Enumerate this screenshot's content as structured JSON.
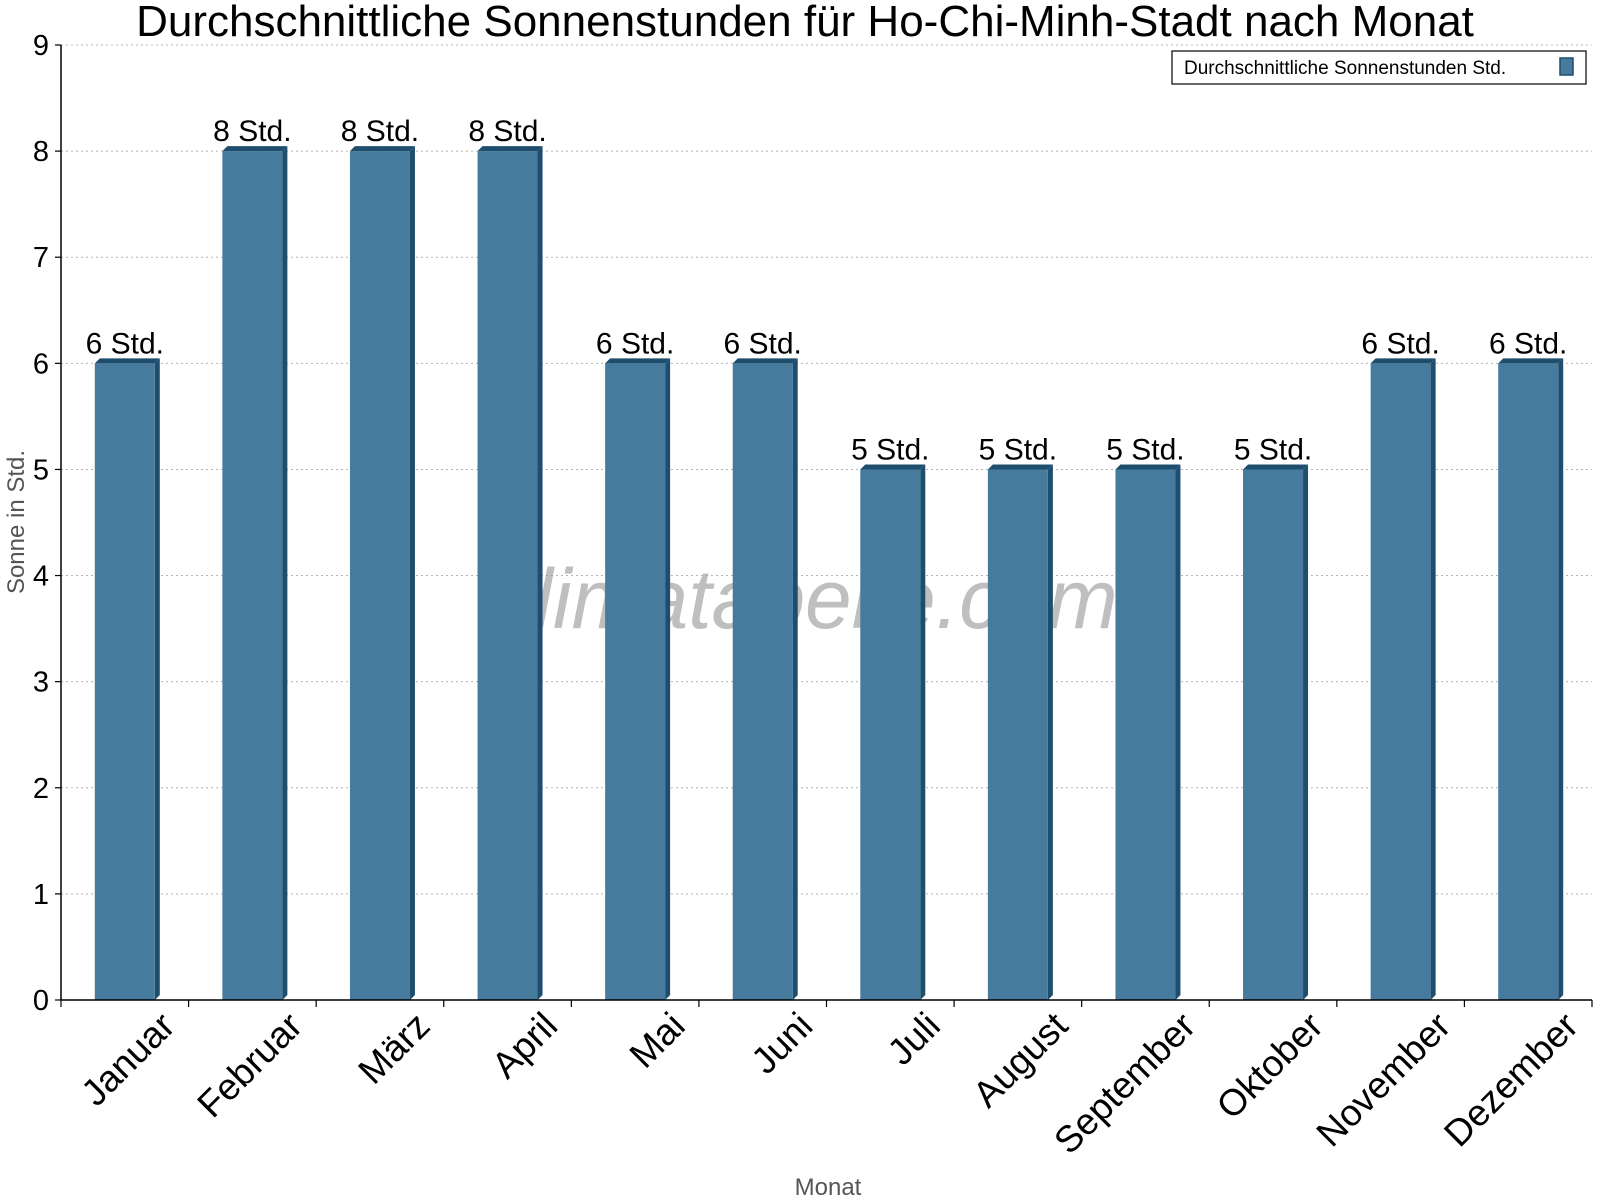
{
  "chart_data": {
    "type": "bar",
    "title": "Durchschnittliche Sonnenstunden für Ho-Chi-Minh-Stadt nach Monat",
    "xlabel": "Monat",
    "ylabel": "Sonne in Std.",
    "ylim": [
      0,
      9
    ],
    "yticks": [
      "0",
      "1",
      "2",
      "3",
      "4",
      "5",
      "6",
      "7",
      "8",
      "9"
    ],
    "grid": true,
    "legend_position": "top-right",
    "categories": [
      "Januar",
      "Februar",
      "März",
      "April",
      "Mai",
      "Juni",
      "Juli",
      "August",
      "September",
      "Oktober",
      "November",
      "Dezember"
    ],
    "series": [
      {
        "name": "Durchschnittliche Sonnenstunden Std.",
        "values": [
          6,
          8,
          8,
          8,
          6,
          6,
          5,
          5,
          5,
          5,
          6,
          6
        ],
        "labels": [
          "6 Std.",
          "8 Std.",
          "8 Std.",
          "8 Std.",
          "6 Std.",
          "6 Std.",
          "5 Std.",
          "5 Std.",
          "5 Std.",
          "5 Std.",
          "6 Std.",
          "6 Std."
        ],
        "color": "#467b9d",
        "side_color": "#1e4d6e"
      }
    ]
  },
  "watermark": "klimatabelle.com"
}
